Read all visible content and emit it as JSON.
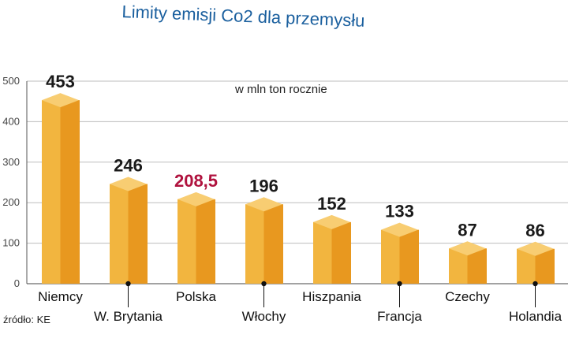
{
  "title": "Limity emisji Co2 dla przemysłu",
  "unit_note": "w mln ton rocznie",
  "source": "źródło: KE",
  "colors": {
    "bar_front": "#f2b53f",
    "bar_side": "#e8981f",
    "bar_top": "#f8cd72",
    "highlight_label": "#b0123e",
    "label": "#1a1a1a",
    "grid": "#bdbdbd",
    "title": "#1a5f9e"
  },
  "chart_data": {
    "type": "bar",
    "title": "Limity emisji Co2 dla przemysłu",
    "xlabel": "",
    "ylabel": "",
    "ylim": [
      0,
      500
    ],
    "yticks": [
      0,
      100,
      200,
      300,
      400,
      500
    ],
    "grid": true,
    "categories": [
      "Niemcy",
      "W. Brytania",
      "Polska",
      "Włochy",
      "Hiszpania",
      "Francja",
      "Czechy",
      "Holandia"
    ],
    "values": [
      453,
      246,
      208.5,
      196,
      152,
      133,
      87,
      86
    ],
    "value_labels": [
      "453",
      "246",
      "208,5",
      "196",
      "152",
      "133",
      "87",
      "86"
    ],
    "highlight_index": 2
  }
}
